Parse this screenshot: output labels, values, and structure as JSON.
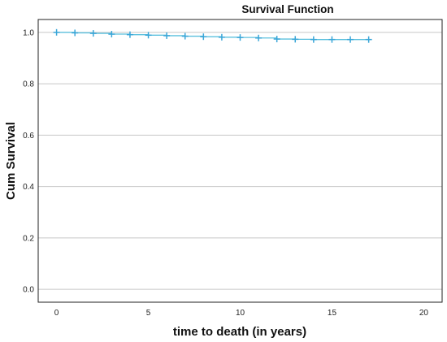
{
  "chart_data": {
    "type": "line",
    "title": "Survival Function",
    "xlabel": "time to death (in years)",
    "ylabel": "Cum Survival",
    "xlim": [
      -1,
      21
    ],
    "ylim": [
      -0.05,
      1.05
    ],
    "xticks": [
      0,
      5,
      10,
      15,
      20
    ],
    "yticks": [
      0.0,
      0.2,
      0.4,
      0.6,
      0.8,
      1.0
    ],
    "xtick_labels": [
      "0",
      "5",
      "10",
      "15",
      "20"
    ],
    "ytick_labels": [
      "0.0",
      "0.2",
      "0.4",
      "0.6",
      "0.8",
      "1.0"
    ],
    "grid": "horizontal",
    "line_color": "#5bc0de",
    "marker_color": "#3aa6d8",
    "series": [
      {
        "x": [
          0,
          1,
          2,
          3,
          4,
          5,
          6,
          7,
          8,
          9,
          10,
          11,
          12,
          13,
          14,
          15,
          16,
          17
        ],
        "y": [
          1.0,
          0.998,
          0.996,
          0.993,
          0.991,
          0.989,
          0.987,
          0.985,
          0.983,
          0.981,
          0.98,
          0.978,
          0.974,
          0.973,
          0.972,
          0.972,
          0.972,
          0.972
        ],
        "censored": true
      }
    ]
  }
}
